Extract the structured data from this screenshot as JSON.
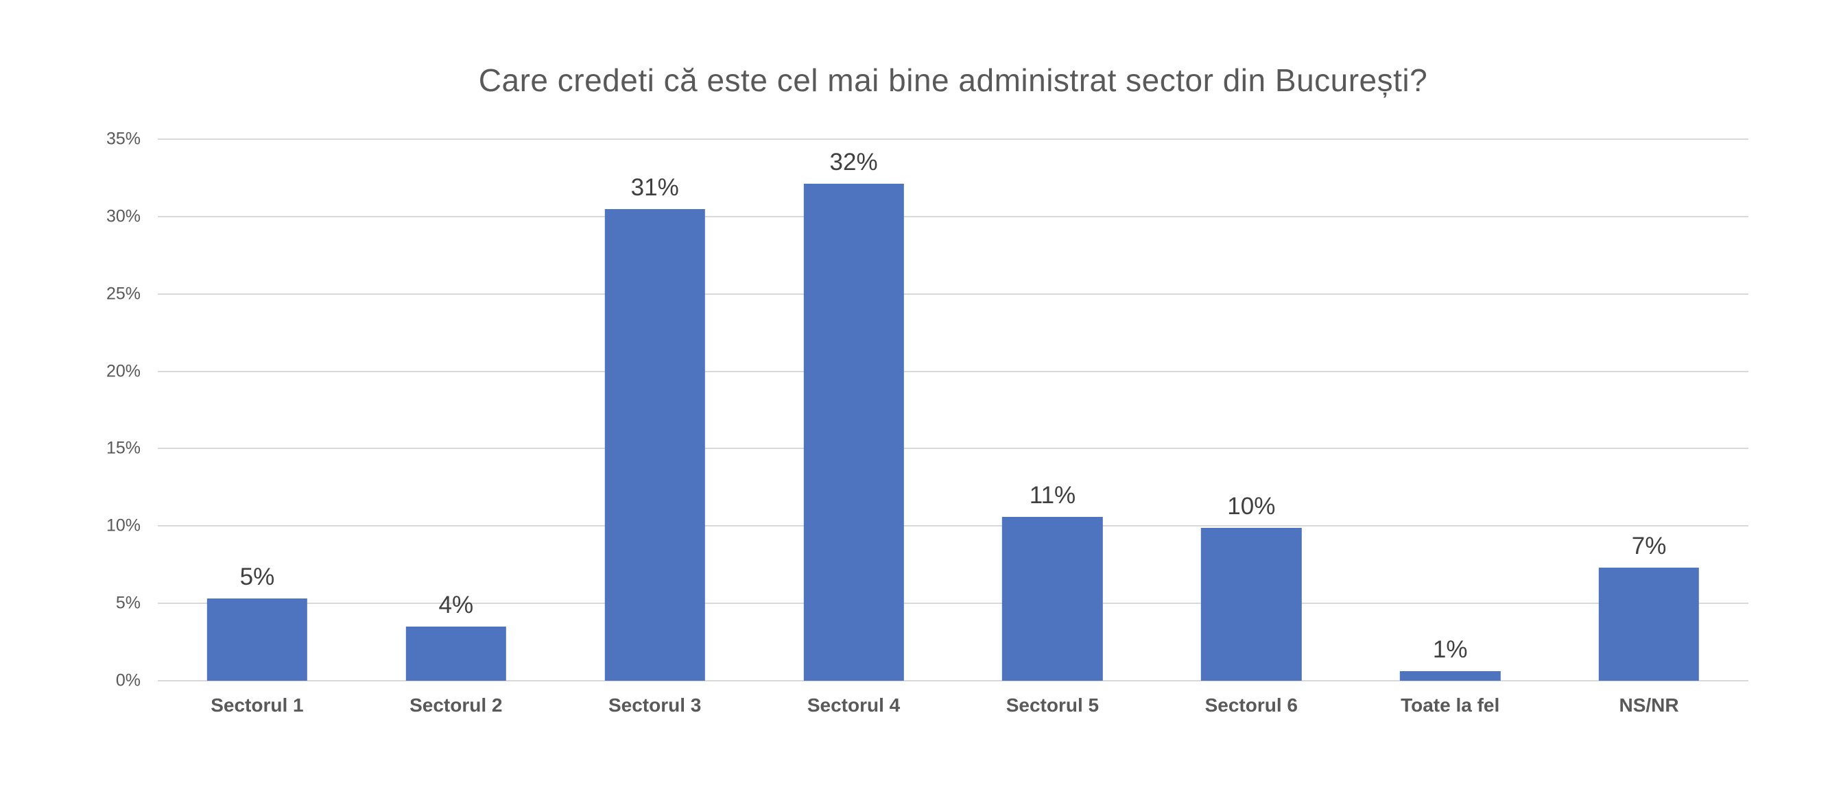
{
  "chart_data": {
    "type": "bar",
    "title": "Care credeti că este cel mai bine administrat sector din București?",
    "categories": [
      "Sectorul 1",
      "Sectorul 2",
      "Sectorul 3",
      "Sectorul 4",
      "Sectorul 5",
      "Sectorul 6",
      "Toate la fel",
      "NS/NR"
    ],
    "values": [
      5,
      4,
      31,
      32,
      11,
      10,
      1,
      7
    ],
    "value_labels": [
      "5%",
      "4%",
      "31%",
      "32%",
      "11%",
      "10%",
      "1%",
      "7%"
    ],
    "bar_heights_pct": [
      5.3,
      3.5,
      30.5,
      32.1,
      10.6,
      9.9,
      0.6,
      7.3
    ],
    "xlabel": "",
    "ylabel": "",
    "ylim": [
      0,
      35
    ],
    "y_ticks": [
      0,
      5,
      10,
      15,
      20,
      25,
      30,
      35
    ],
    "y_tick_labels": [
      "0%",
      "5%",
      "10%",
      "15%",
      "20%",
      "25%",
      "30%",
      "35%"
    ],
    "grid": true,
    "legend": false,
    "colors": {
      "bar": "#4E73BF",
      "title": "#595959",
      "axis_labels": "#595959",
      "data_labels": "#3F3F3F",
      "gridline": "#D9D9D9",
      "background": "#FFFFFF"
    }
  }
}
